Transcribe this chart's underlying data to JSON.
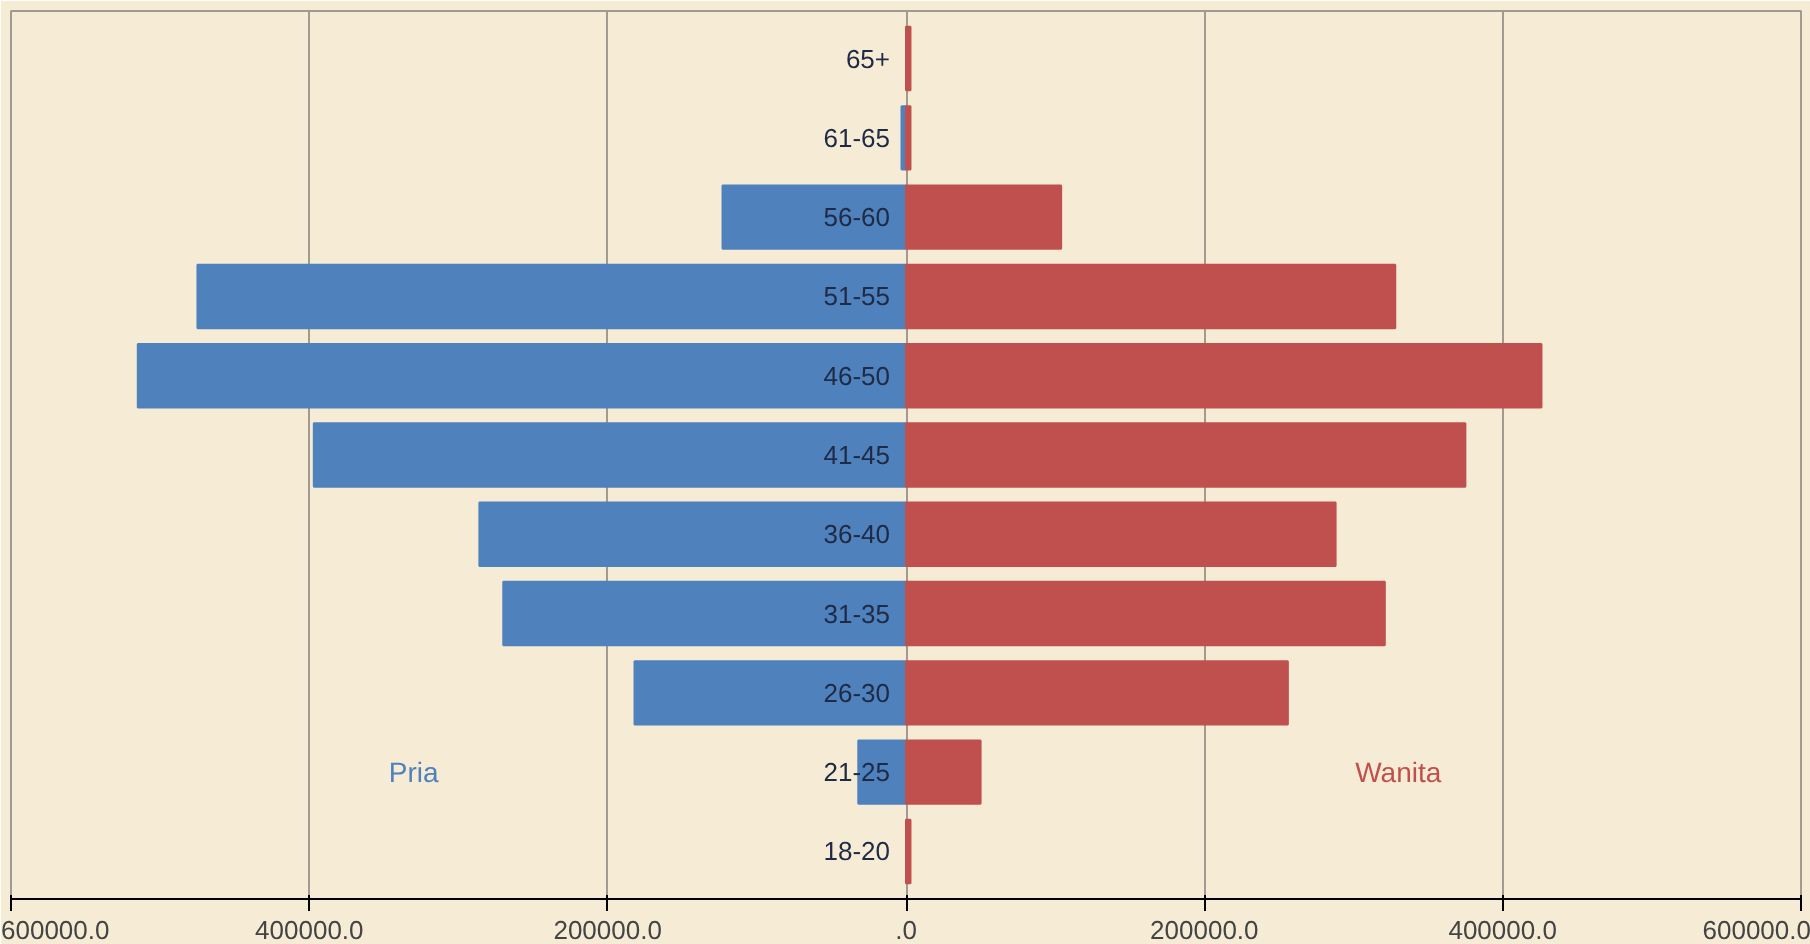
{
  "chart_data": {
    "type": "bar",
    "orientation": "horizontal",
    "categories": [
      "65+",
      "61-65",
      "56-60",
      "51-55",
      "46-50",
      "41-45",
      "36-40",
      "31-35",
      "26-30",
      "21-25",
      "18-20"
    ],
    "series": [
      {
        "name": "Pria",
        "color": "#4f81bd",
        "values": [
          0,
          -3000,
          -123000,
          -475000,
          -515000,
          -397000,
          -286000,
          -270000,
          -182000,
          -32000,
          0
        ]
      },
      {
        "name": "Wanita",
        "color": "#c0504d",
        "values": [
          3000,
          3000,
          104000,
          328000,
          426000,
          375000,
          288000,
          321000,
          256000,
          50000,
          3000
        ]
      }
    ],
    "xlim": [
      -600000,
      600000
    ],
    "xticks": [
      {
        "value": -600000,
        "label": "600000.0"
      },
      {
        "value": -400000,
        "label": "400000.0"
      },
      {
        "value": -200000,
        "label": "200000.0"
      },
      {
        "value": 0,
        "label": ".0"
      },
      {
        "value": 200000,
        "label": "200000.0"
      },
      {
        "value": 400000,
        "label": "400000.0"
      },
      {
        "value": 600000,
        "label": "600000.0"
      }
    ],
    "grid": "x",
    "legend": false,
    "stacked": true
  }
}
